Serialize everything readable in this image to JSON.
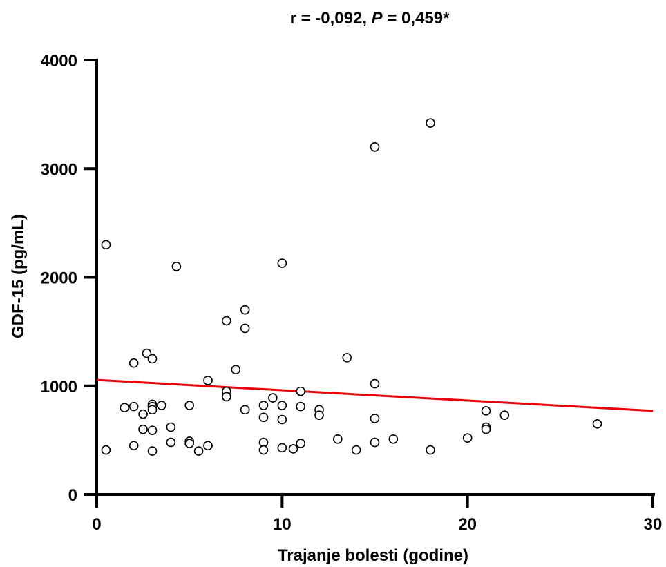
{
  "chart_data": {
    "type": "scatter",
    "title": {
      "prefix": "r = -0,092, ",
      "p_symbol": "P",
      "suffix": " = 0,459*"
    },
    "xlabel": "Trajanje bolesti (godine)",
    "ylabel": "GDF-15 (pg/mL)",
    "xlim": [
      0,
      30
    ],
    "ylim": [
      0,
      4000
    ],
    "xticks": [
      "0",
      "10",
      "20",
      "30"
    ],
    "yticks": [
      "0",
      "1000",
      "2000",
      "3000",
      "4000"
    ],
    "grid": false,
    "legend": "none",
    "colors": {
      "points_stroke": "#000000",
      "points_fill": "#ffffff",
      "regression_line": "#e8000b"
    },
    "regression_line": {
      "x": [
        0,
        30
      ],
      "y": [
        1055,
        770
      ]
    },
    "series": [
      {
        "points": [
          [
            0.5,
            2300
          ],
          [
            0.5,
            410
          ],
          [
            1.5,
            800
          ],
          [
            2,
            810
          ],
          [
            2,
            1210
          ],
          [
            2,
            450
          ],
          [
            2.5,
            740
          ],
          [
            2.5,
            600
          ],
          [
            2.7,
            1300
          ],
          [
            3,
            1250
          ],
          [
            3,
            830
          ],
          [
            3,
            810
          ],
          [
            3,
            780
          ],
          [
            3,
            590
          ],
          [
            3,
            400
          ],
          [
            3.5,
            820
          ],
          [
            4,
            620
          ],
          [
            4,
            480
          ],
          [
            4.3,
            2100
          ],
          [
            5,
            820
          ],
          [
            5,
            490
          ],
          [
            5,
            470
          ],
          [
            5.5,
            400
          ],
          [
            6,
            1050
          ],
          [
            6,
            450
          ],
          [
            7,
            1600
          ],
          [
            7,
            950
          ],
          [
            7,
            900
          ],
          [
            7.5,
            1150
          ],
          [
            8,
            1700
          ],
          [
            8,
            1530
          ],
          [
            8,
            780
          ],
          [
            9,
            820
          ],
          [
            9,
            710
          ],
          [
            9,
            480
          ],
          [
            9,
            410
          ],
          [
            9.5,
            890
          ],
          [
            10,
            2130
          ],
          [
            10,
            820
          ],
          [
            10,
            690
          ],
          [
            10,
            430
          ],
          [
            10.6,
            420
          ],
          [
            11,
            950
          ],
          [
            11,
            810
          ],
          [
            11,
            470
          ],
          [
            12,
            780
          ],
          [
            12,
            730
          ],
          [
            13,
            510
          ],
          [
            13.5,
            1260
          ],
          [
            14,
            410
          ],
          [
            15,
            3200
          ],
          [
            15,
            1020
          ],
          [
            15,
            700
          ],
          [
            15,
            480
          ],
          [
            16,
            510
          ],
          [
            18,
            3420
          ],
          [
            18,
            410
          ],
          [
            20,
            520
          ],
          [
            21,
            770
          ],
          [
            21,
            620
          ],
          [
            21,
            600
          ],
          [
            22,
            730
          ],
          [
            27,
            650
          ]
        ]
      }
    ]
  }
}
